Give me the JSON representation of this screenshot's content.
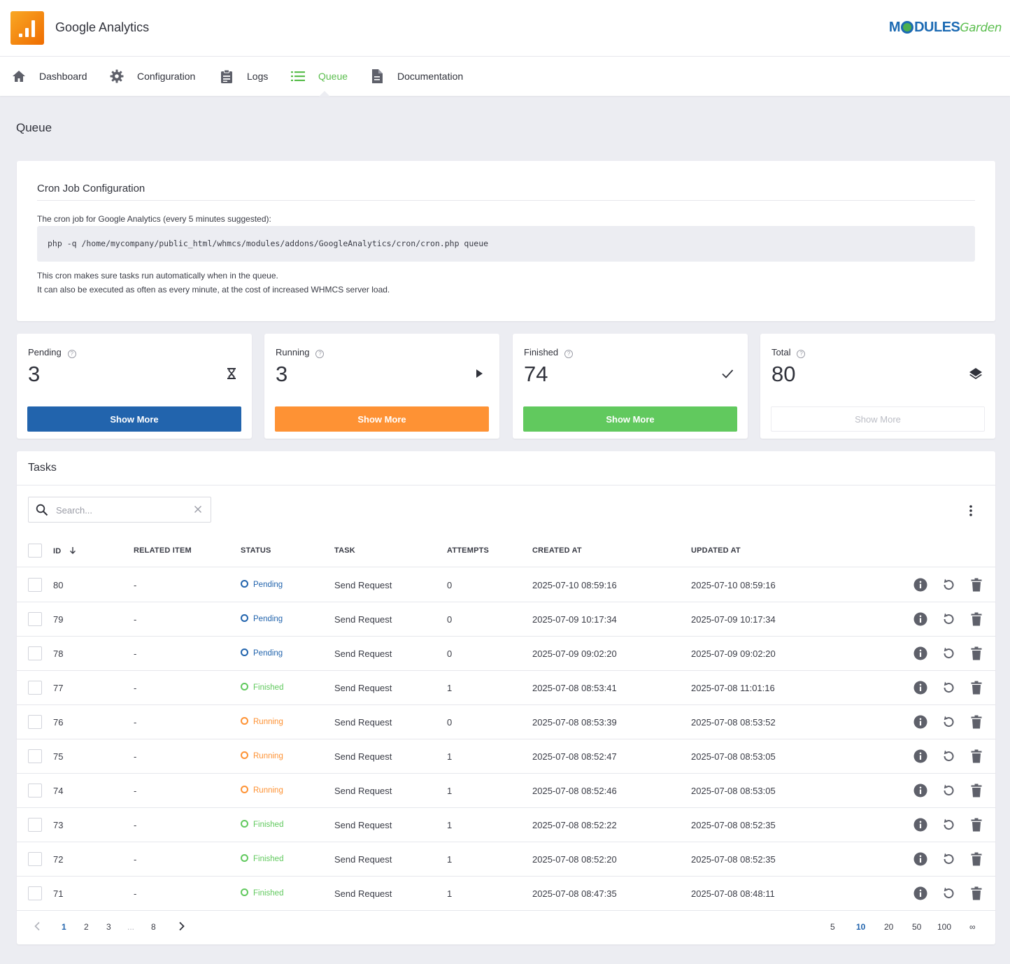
{
  "app": {
    "title": "Google Analytics",
    "brand_left": "M",
    "brand_mid": "DULES",
    "brand_right": "Garden"
  },
  "nav": [
    {
      "label": "Dashboard",
      "icon": "home-icon"
    },
    {
      "label": "Configuration",
      "icon": "gear-icon"
    },
    {
      "label": "Logs",
      "icon": "clipboard-icon"
    },
    {
      "label": "Queue",
      "icon": "list-icon",
      "active": true
    },
    {
      "label": "Documentation",
      "icon": "document-icon"
    }
  ],
  "page": {
    "title": "Queue"
  },
  "cron": {
    "title": "Cron Job Configuration",
    "intro": "The cron job for Google Analytics (every 5 minutes suggested):",
    "command": "php -q /home/mycompany/public_html/whmcs/modules/addons/GoogleAnalytics/cron/cron.php queue",
    "note1": "This cron makes sure tasks run automatically when in the queue.",
    "note2": "It can also be executed as often as every minute, at the cost of increased WHMCS server load."
  },
  "stats": [
    {
      "label": "Pending",
      "value": "3",
      "icon": "hourglass-icon",
      "button": "Show More",
      "color": "#2264ad"
    },
    {
      "label": "Running",
      "value": "3",
      "icon": "play-icon",
      "button": "Show More",
      "color": "#fe9234"
    },
    {
      "label": "Finished",
      "value": "74",
      "icon": "check-icon",
      "button": "Show More",
      "color": "#61c95e"
    },
    {
      "label": "Total",
      "value": "80",
      "icon": "layers-icon",
      "button": "Show More",
      "color": "#ffffff"
    }
  ],
  "tasks": {
    "title": "Tasks",
    "search_placeholder": "Search...",
    "columns": [
      "ID",
      "RELATED ITEM",
      "STATUS",
      "TASK",
      "ATTEMPTS",
      "CREATED AT",
      "UPDATED AT"
    ],
    "rows": [
      {
        "id": "80",
        "related": "-",
        "status": "Pending",
        "task": "Send Request",
        "attempts": "0",
        "created": "2025-07-10 08:59:16",
        "updated": "2025-07-10 08:59:16"
      },
      {
        "id": "79",
        "related": "-",
        "status": "Pending",
        "task": "Send Request",
        "attempts": "0",
        "created": "2025-07-09 10:17:34",
        "updated": "2025-07-09 10:17:34"
      },
      {
        "id": "78",
        "related": "-",
        "status": "Pending",
        "task": "Send Request",
        "attempts": "0",
        "created": "2025-07-09 09:02:20",
        "updated": "2025-07-09 09:02:20"
      },
      {
        "id": "77",
        "related": "-",
        "status": "Finished",
        "task": "Send Request",
        "attempts": "1",
        "created": "2025-07-08 08:53:41",
        "updated": "2025-07-08 11:01:16"
      },
      {
        "id": "76",
        "related": "-",
        "status": "Running",
        "task": "Send Request",
        "attempts": "0",
        "created": "2025-07-08 08:53:39",
        "updated": "2025-07-08 08:53:52"
      },
      {
        "id": "75",
        "related": "-",
        "status": "Running",
        "task": "Send Request",
        "attempts": "1",
        "created": "2025-07-08 08:52:47",
        "updated": "2025-07-08 08:53:05"
      },
      {
        "id": "74",
        "related": "-",
        "status": "Running",
        "task": "Send Request",
        "attempts": "1",
        "created": "2025-07-08 08:52:46",
        "updated": "2025-07-08 08:53:05"
      },
      {
        "id": "73",
        "related": "-",
        "status": "Finished",
        "task": "Send Request",
        "attempts": "1",
        "created": "2025-07-08 08:52:22",
        "updated": "2025-07-08 08:52:35"
      },
      {
        "id": "72",
        "related": "-",
        "status": "Finished",
        "task": "Send Request",
        "attempts": "1",
        "created": "2025-07-08 08:52:20",
        "updated": "2025-07-08 08:52:35"
      },
      {
        "id": "71",
        "related": "-",
        "status": "Finished",
        "task": "Send Request",
        "attempts": "1",
        "created": "2025-07-08 08:47:35",
        "updated": "2025-07-08 08:48:11"
      }
    ]
  },
  "pagination": {
    "pages": [
      "1",
      "2",
      "3",
      "...",
      "8"
    ],
    "current": "1",
    "page_sizes": [
      "5",
      "10",
      "20",
      "50",
      "100",
      "∞"
    ],
    "current_size": "10"
  }
}
